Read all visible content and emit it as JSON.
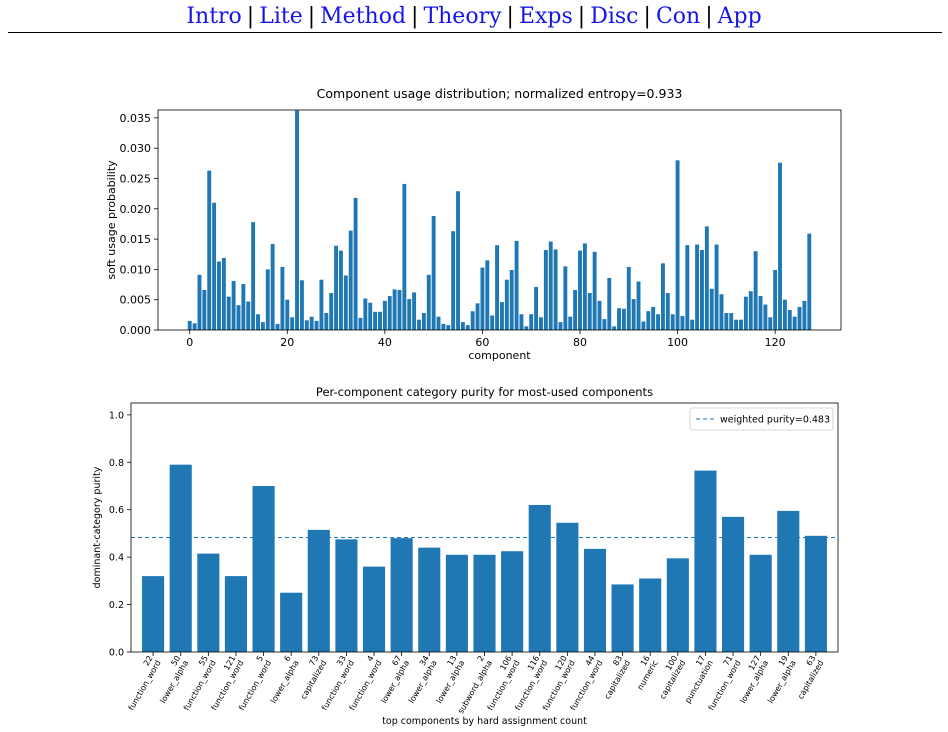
{
  "nav": {
    "items": [
      {
        "label": "Intro"
      },
      {
        "label": "Lite"
      },
      {
        "label": "Method"
      },
      {
        "label": "Theory"
      },
      {
        "label": "Exps"
      },
      {
        "label": "Disc"
      },
      {
        "label": "Con"
      },
      {
        "label": "App"
      }
    ],
    "separator": "|"
  },
  "chart_data": [
    {
      "type": "bar",
      "title": "Component usage distribution; normalized entropy=0.933",
      "xlabel": "component",
      "ylabel": "soft usage probability",
      "xlim": [
        -6.5,
        133.5
      ],
      "ylim": [
        0,
        0.0363
      ],
      "xticks": [
        0,
        20,
        40,
        60,
        80,
        100,
        120
      ],
      "yticks": [
        0.0,
        0.005,
        0.01,
        0.015,
        0.02,
        0.025,
        0.03,
        0.035
      ],
      "ytick_labels": [
        "0.000",
        "0.005",
        "0.010",
        "0.015",
        "0.020",
        "0.025",
        "0.030",
        "0.035"
      ],
      "color": "#1f77b4",
      "values": [
        0.0015,
        0.0011,
        0.0091,
        0.0066,
        0.0263,
        0.021,
        0.0113,
        0.0119,
        0.0055,
        0.0081,
        0.0041,
        0.0076,
        0.0047,
        0.0178,
        0.0026,
        0.0013,
        0.01,
        0.0142,
        0.001,
        0.0104,
        0.005,
        0.0021,
        0.0362,
        0.0082,
        0.0016,
        0.0022,
        0.0015,
        0.0083,
        0.0028,
        0.0061,
        0.0139,
        0.0131,
        0.009,
        0.0164,
        0.0218,
        0.002,
        0.0052,
        0.0045,
        0.003,
        0.003,
        0.0048,
        0.0056,
        0.0067,
        0.0066,
        0.0241,
        0.0051,
        0.0062,
        0.0017,
        0.0028,
        0.0091,
        0.0188,
        0.0022,
        0.001,
        0.0008,
        0.0163,
        0.0229,
        0.0013,
        0.0008,
        0.0031,
        0.0044,
        0.0103,
        0.0115,
        0.0024,
        0.014,
        0.0046,
        0.0083,
        0.0099,
        0.0147,
        0.0026,
        0.0006,
        0.0026,
        0.0071,
        0.0021,
        0.0132,
        0.0146,
        0.0133,
        0.0013,
        0.0105,
        0.0022,
        0.0066,
        0.0131,
        0.0143,
        0.0061,
        0.0129,
        0.0048,
        0.0018,
        0.0086,
        0.0006,
        0.0036,
        0.0035,
        0.0104,
        0.0051,
        0.008,
        0.0014,
        0.0031,
        0.0038,
        0.0026,
        0.011,
        0.0061,
        0.0026,
        0.028,
        0.0023,
        0.014,
        0.0017,
        0.0141,
        0.0132,
        0.0171,
        0.0068,
        0.0141,
        0.0059,
        0.0028,
        0.0028,
        0.0017,
        0.0017,
        0.0055,
        0.0064,
        0.013,
        0.0056,
        0.0042,
        0.0021,
        0.0099,
        0.0276,
        0.005,
        0.0033,
        0.0022,
        0.0038,
        0.0048,
        0.0159
      ]
    },
    {
      "type": "bar",
      "title": "Per-component category purity for most-used components",
      "xlabel": "top components by hard assignment count",
      "ylabel": "dominant-category purity",
      "ylim": [
        0,
        1.05
      ],
      "yticks": [
        0.0,
        0.2,
        0.4,
        0.6,
        0.8,
        1.0
      ],
      "ytick_labels": [
        "0.0",
        "0.2",
        "0.4",
        "0.6",
        "0.8",
        "1.0"
      ],
      "color": "#1f77b4",
      "reference_line": {
        "value": 0.483,
        "label": "weighted purity=0.483",
        "style": "dashed"
      },
      "legend": "top-right",
      "categories": [
        "22\nfunction_word",
        "50\nlower_alpha",
        "55\nfunction_word",
        "121\nfunction_word",
        "5\nfunction_word",
        "6\nlower_alpha",
        "73\ncapitalized",
        "33\nfunction_word",
        "4\nfunction_word",
        "67\nlower_alpha",
        "34\nlower_alpha",
        "13\nlower_alpha",
        "2\nsubword_alpha",
        "106\nfunction_word",
        "116\nfunction_word",
        "120\nfunction_word",
        "44\nfunction_word",
        "83\ncapitalized",
        "16\nnumeric",
        "100\ncapitalized",
        "17\npunctuation",
        "71\nfunction_word",
        "127\nlower_alpha",
        "19\nlower_alpha",
        "63\ncapitalized"
      ],
      "values": [
        0.32,
        0.79,
        0.415,
        0.32,
        0.7,
        0.25,
        0.515,
        0.475,
        0.36,
        0.48,
        0.44,
        0.41,
        0.41,
        0.425,
        0.62,
        0.545,
        0.435,
        0.285,
        0.31,
        0.395,
        0.765,
        0.57,
        0.41,
        0.595,
        0.49
      ]
    }
  ]
}
